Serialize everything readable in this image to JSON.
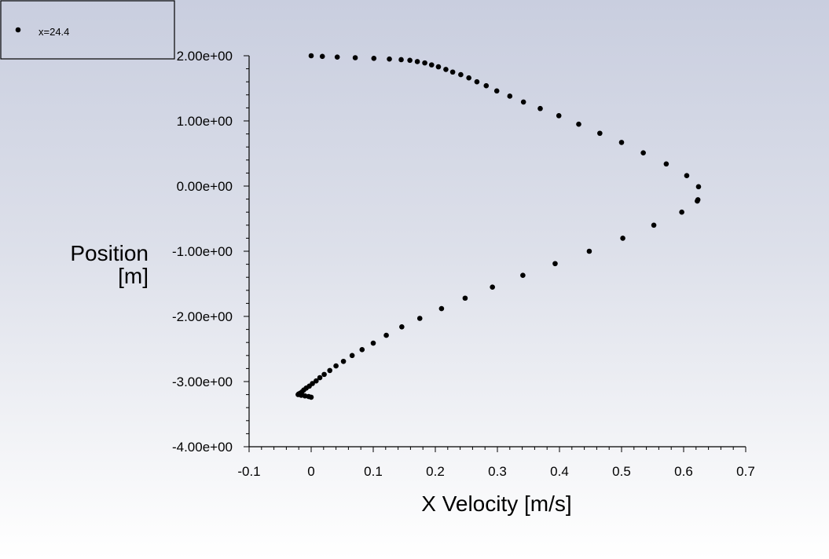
{
  "chart_data": {
    "type": "scatter",
    "xlabel": "X Velocity [m/s]",
    "ylabel_lines": [
      "Position",
      "[m]"
    ],
    "xlim": [
      -0.1,
      0.7
    ],
    "ylim": [
      -4.0,
      2.0
    ],
    "x_ticks": [
      -0.1,
      0,
      0.1,
      0.2,
      0.3,
      0.4,
      0.5,
      0.6,
      0.7
    ],
    "x_tick_labels": [
      "-0.1",
      "0",
      "0.1",
      "0.2",
      "0.3",
      "0.4",
      "0.5",
      "0.6",
      "0.7"
    ],
    "y_ticks": [
      2,
      1,
      0,
      -1,
      -2,
      -3,
      -4
    ],
    "y_tick_labels": [
      "2.00e+00",
      "1.00e+00",
      "0.00e+00",
      "-1.00e+00",
      "-2.00e+00",
      "-3.00e+00",
      "-4.00e+00"
    ],
    "grid": false,
    "legend_position": "top-left",
    "marker_color": "#000000",
    "series": [
      {
        "name": "x=24.4",
        "points": [
          [
            0.0,
            2.0
          ],
          [
            0.018,
            1.99
          ],
          [
            0.042,
            1.98
          ],
          [
            0.071,
            1.97
          ],
          [
            0.101,
            1.96
          ],
          [
            0.126,
            1.95
          ],
          [
            0.145,
            1.94
          ],
          [
            0.159,
            1.93
          ],
          [
            0.171,
            1.91
          ],
          [
            0.183,
            1.89
          ],
          [
            0.194,
            1.86
          ],
          [
            0.205,
            1.83
          ],
          [
            0.217,
            1.79
          ],
          [
            0.228,
            1.75
          ],
          [
            0.241,
            1.71
          ],
          [
            0.254,
            1.66
          ],
          [
            0.267,
            1.6
          ],
          [
            0.282,
            1.54
          ],
          [
            0.299,
            1.46
          ],
          [
            0.32,
            1.38
          ],
          [
            0.342,
            1.29
          ],
          [
            0.369,
            1.19
          ],
          [
            0.399,
            1.08
          ],
          [
            0.431,
            0.95
          ],
          [
            0.465,
            0.81
          ],
          [
            0.5,
            0.67
          ],
          [
            0.535,
            0.51
          ],
          [
            0.572,
            0.34
          ],
          [
            0.605,
            0.16
          ],
          [
            0.624,
            -0.01
          ],
          [
            0.623,
            -0.21
          ],
          [
            0.622,
            -0.23
          ],
          [
            0.597,
            -0.4
          ],
          [
            0.552,
            -0.6
          ],
          [
            0.502,
            -0.8
          ],
          [
            0.448,
            -1.0
          ],
          [
            0.393,
            -1.19
          ],
          [
            0.341,
            -1.37
          ],
          [
            0.292,
            -1.55
          ],
          [
            0.248,
            -1.72
          ],
          [
            0.21,
            -1.88
          ],
          [
            0.175,
            -2.03
          ],
          [
            0.146,
            -2.16
          ],
          [
            0.121,
            -2.29
          ],
          [
            0.1,
            -2.41
          ],
          [
            0.082,
            -2.51
          ],
          [
            0.066,
            -2.6
          ],
          [
            0.052,
            -2.69
          ],
          [
            0.04,
            -2.76
          ],
          [
            0.03,
            -2.83
          ],
          [
            0.021,
            -2.89
          ],
          [
            0.014,
            -2.94
          ],
          [
            0.008,
            -2.99
          ],
          [
            0.002,
            -3.03
          ],
          [
            -0.003,
            -3.07
          ],
          [
            -0.008,
            -3.1
          ],
          [
            -0.012,
            -3.13
          ],
          [
            -0.015,
            -3.16
          ],
          [
            -0.018,
            -3.18
          ],
          [
            -0.02,
            -3.19
          ],
          [
            -0.021,
            -3.2
          ],
          [
            -0.016,
            -3.21
          ],
          [
            -0.01,
            -3.22
          ],
          [
            -0.004,
            -3.23
          ],
          [
            0.0,
            -3.24
          ]
        ]
      }
    ]
  }
}
